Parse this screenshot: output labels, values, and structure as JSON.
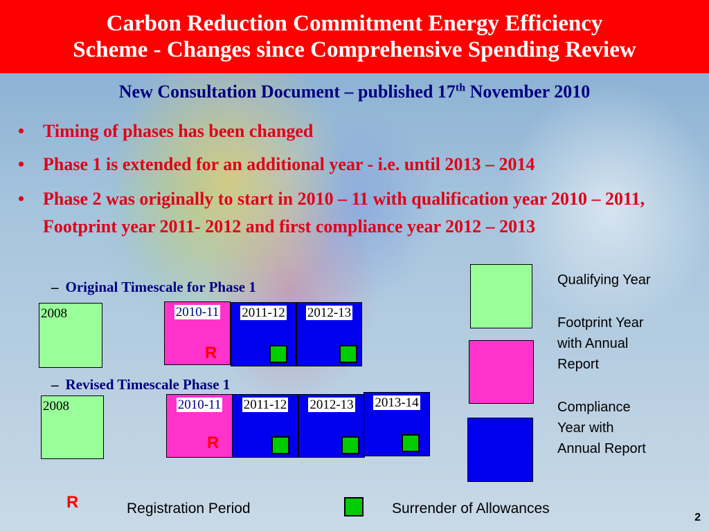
{
  "header": {
    "line1": "Carbon Reduction Commitment Energy Efficiency",
    "line2": "Scheme - Changes since Comprehensive Spending Review"
  },
  "subtitle": {
    "text_before": "New Consultation Document – published 17",
    "superscript": "th",
    "text_after": " November 2010"
  },
  "bullets": [
    "Timing of phases has been changed",
    "Phase 1 is extended for an additional year  - i.e. until 2013 – 2014",
    "Phase 2 was originally to start in 2010 – 11 with qualification year 2010 – 2011, Footprint year 2011- 2012 and first compliance year 2012 – 2013"
  ],
  "bullet_glyph": "•",
  "original": {
    "heading": "Original Timescale for Phase 1",
    "dash": "–",
    "years": [
      "2008",
      "2010-11",
      "2011-12",
      "2012-13"
    ],
    "registration_mark": "R"
  },
  "revised": {
    "heading": "Revised Timescale Phase 1",
    "dash": "–",
    "years": [
      "2008",
      "2010-11",
      "2011-12",
      "2012-13",
      "2013-14"
    ],
    "registration_mark": "R"
  },
  "legend": {
    "qualifying": "Qualifying Year",
    "footprint": [
      "Footprint Year",
      "with Annual",
      "Report"
    ],
    "compliance": [
      "Compliance",
      "Year with",
      "Annual Report"
    ]
  },
  "footer": {
    "registration_mark": "R",
    "registration_label": "Registration Period",
    "surrender_label": "Surrender of Allowances"
  },
  "page_number": "2",
  "colors": {
    "header_bg": "#ff0000",
    "bullet_text": "#e0001a",
    "subtitle_text": "#000080",
    "qualifying_green": "#99ff99",
    "footprint_pink": "#ff33cc",
    "compliance_blue": "#0000ee",
    "surrender_green": "#00cc00"
  }
}
